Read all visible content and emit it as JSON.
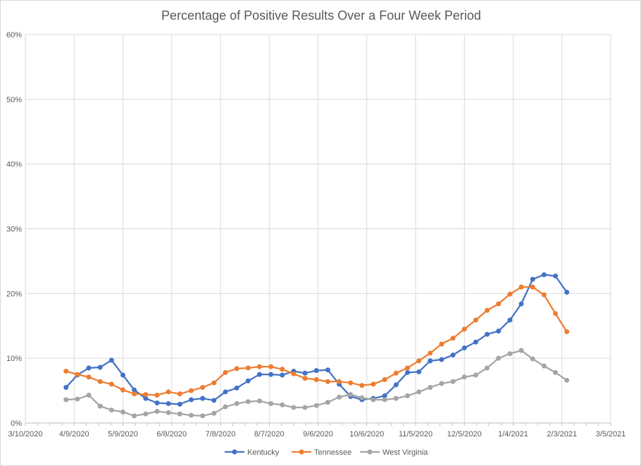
{
  "chart_data": {
    "type": "line",
    "title": "Percentage of Positive Results Over a Four Week Period",
    "xlabel": "",
    "ylabel": "",
    "ylim": [
      0,
      60
    ],
    "yticks": [
      "0%",
      "10%",
      "20%",
      "30%",
      "40%",
      "50%",
      "60%"
    ],
    "xticks": [
      "3/10/2020",
      "4/9/2020",
      "5/9/2020",
      "6/8/2020",
      "7/8/2020",
      "8/7/2020",
      "9/6/2020",
      "10/6/2020",
      "11/5/2020",
      "12/5/2020",
      "1/4/2021",
      "2/3/2021",
      "3/5/2021"
    ],
    "x_start": "4/4/2020",
    "x_step_days": 7,
    "grid": true,
    "legend": "bottom",
    "series": [
      {
        "name": "Kentucky",
        "color": "#4472c4",
        "values": [
          5.5,
          7.4,
          8.5,
          8.6,
          9.7,
          7.4,
          5.1,
          3.8,
          3.1,
          3.0,
          2.9,
          3.6,
          3.8,
          3.5,
          4.8,
          5.4,
          6.5,
          7.5,
          7.5,
          7.4,
          8.0,
          7.7,
          8.1,
          8.2,
          6.0,
          4.1,
          3.6,
          3.8,
          4.2,
          5.9,
          7.8,
          7.9,
          9.6,
          9.8,
          10.5,
          11.6,
          12.5,
          13.7,
          14.2,
          15.9,
          18.4,
          22.2,
          22.9,
          22.7,
          20.2
        ]
      },
      {
        "name": "Tennessee",
        "color": "#ed7d31",
        "values": [
          8.0,
          7.5,
          7.1,
          6.4,
          6.0,
          5.1,
          4.5,
          4.4,
          4.3,
          4.8,
          4.5,
          5.0,
          5.5,
          6.2,
          7.8,
          8.4,
          8.5,
          8.7,
          8.7,
          8.3,
          7.6,
          6.9,
          6.7,
          6.4,
          6.4,
          6.2,
          5.8,
          6.0,
          6.7,
          7.7,
          8.5,
          9.6,
          10.8,
          12.2,
          13.1,
          14.5,
          15.9,
          17.4,
          18.4,
          19.9,
          21.0,
          21.0,
          19.8,
          16.9,
          14.1
        ]
      },
      {
        "name": "West Virginia",
        "color": "#a5a5a5",
        "values": [
          3.6,
          3.7,
          4.3,
          2.6,
          2.0,
          1.7,
          1.1,
          1.4,
          1.8,
          1.6,
          1.4,
          1.2,
          1.1,
          1.5,
          2.5,
          3.0,
          3.3,
          3.4,
          3.0,
          2.8,
          2.4,
          2.4,
          2.7,
          3.2,
          4.0,
          4.4,
          3.9,
          3.6,
          3.6,
          3.8,
          4.2,
          4.8,
          5.5,
          6.1,
          6.4,
          7.1,
          7.4,
          8.5,
          10.0,
          10.7,
          11.2,
          9.9,
          8.8,
          7.8,
          6.6
        ]
      }
    ]
  }
}
